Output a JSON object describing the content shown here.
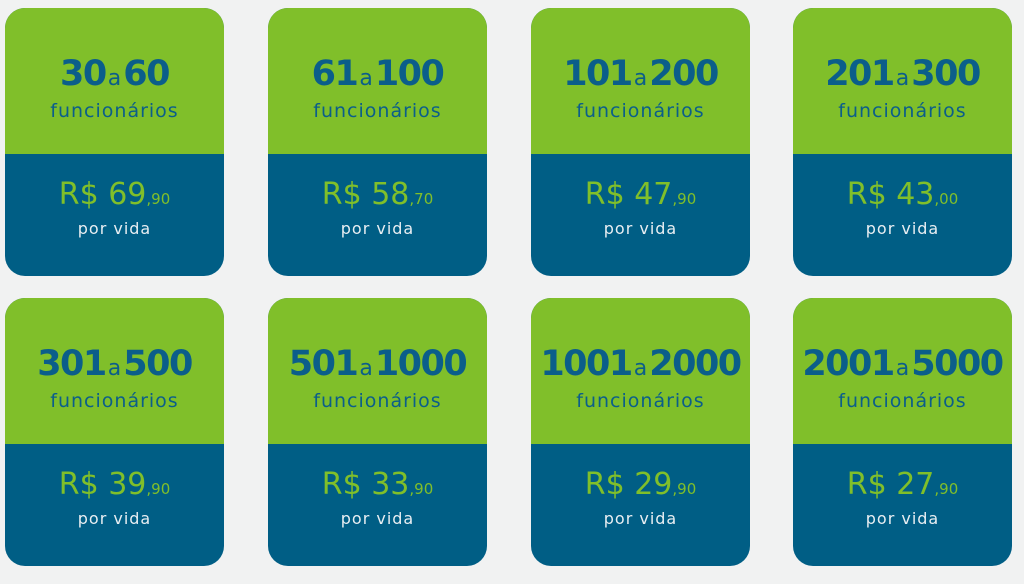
{
  "colors": {
    "green": "#80bf2a",
    "blue": "#005e85",
    "text_blue": "#0b5e8a"
  },
  "connector": "a",
  "unit_label": "funcionários",
  "currency": "R$",
  "per_label": "por vida",
  "plans": [
    {
      "from": "30",
      "to": "60",
      "price": "69",
      "cents": "90"
    },
    {
      "from": "61",
      "to": "100",
      "price": "58",
      "cents": "70"
    },
    {
      "from": "101",
      "to": "200",
      "price": "47",
      "cents": "90"
    },
    {
      "from": "201",
      "to": "300",
      "price": "43",
      "cents": "00"
    },
    {
      "from": "301",
      "to": "500",
      "price": "39",
      "cents": "90"
    },
    {
      "from": "501",
      "to": "1000",
      "price": "33",
      "cents": "90"
    },
    {
      "from": "1001",
      "to": "2000",
      "price": "29",
      "cents": "90"
    },
    {
      "from": "2001",
      "to": "5000",
      "price": "27",
      "cents": "90"
    }
  ]
}
